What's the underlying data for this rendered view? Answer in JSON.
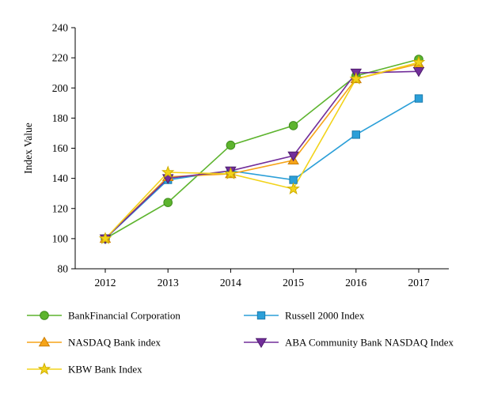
{
  "chart_data": {
    "type": "line",
    "title": "",
    "xlabel": "",
    "ylabel": "Index Value",
    "ylim": [
      80,
      240
    ],
    "ytick_step": 20,
    "grid": false,
    "legend_position": "bottom",
    "x": [
      "2012",
      "2013",
      "2014",
      "2015",
      "2016",
      "2017"
    ],
    "series": [
      {
        "name": "BankFinancial Corporation",
        "marker": "circle",
        "color": "#5db42e",
        "edge": "#3f8c1c",
        "values": [
          100,
          124,
          162,
          175,
          208,
          219
        ]
      },
      {
        "name": "Russell 2000 Index",
        "marker": "square",
        "color": "#2b9fd8",
        "edge": "#1b7cad",
        "values": [
          100,
          139,
          145,
          139,
          169,
          193
        ]
      },
      {
        "name": "NASDAQ Bank index",
        "marker": "triangle-up",
        "color": "#f6a418",
        "edge": "#cc7f07",
        "values": [
          100,
          141,
          143,
          152,
          206,
          216
        ]
      },
      {
        "name": "ABA Community Bank NASDAQ Index",
        "marker": "triangle-down",
        "color": "#722e9a",
        "edge": "#4f1d6e",
        "values": [
          100,
          140,
          145,
          155,
          210,
          211
        ]
      },
      {
        "name": "KBW Bank Index",
        "marker": "star",
        "color": "#f2d31b",
        "edge": "#cfae00",
        "values": [
          100,
          144,
          143,
          133,
          206,
          217
        ]
      }
    ]
  }
}
